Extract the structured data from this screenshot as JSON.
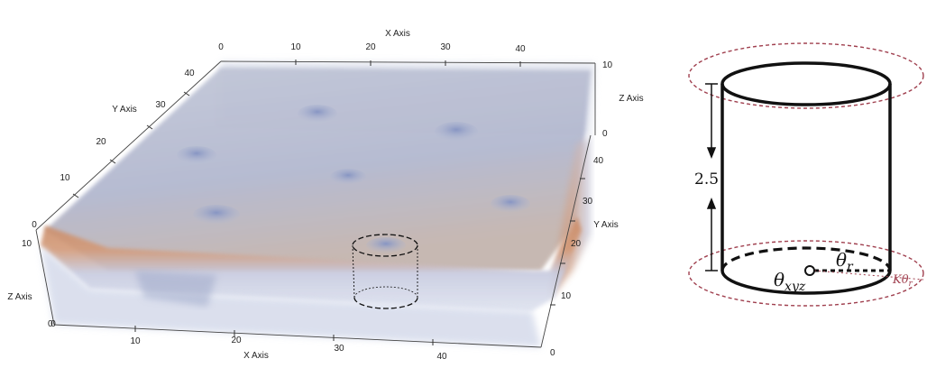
{
  "left_panel": {
    "axis_titles": {
      "x_top": "X Axis",
      "x_bottom": "X Axis",
      "y_left": "Y Axis",
      "y_right": "Y Axis",
      "z_right": "Z Axis",
      "z_left": "Z Axis"
    },
    "ticks": {
      "x_top": [
        "0",
        "10",
        "20",
        "30",
        "40"
      ],
      "x_bottom": [
        "0",
        "10",
        "20",
        "30",
        "40"
      ],
      "y_left": [
        "0",
        "10",
        "20",
        "30",
        "40"
      ],
      "y_right": [
        "0",
        "10",
        "20",
        "30",
        "40"
      ],
      "z_right": [
        "10",
        "0"
      ],
      "z_left": [
        "10",
        "0"
      ]
    },
    "colors": {
      "slab_top": "#a9b3cf",
      "slab_orange": "#c97d55",
      "slab_bottom": "#c4cde3",
      "dimple": "#8f9ec8"
    }
  },
  "right_panel": {
    "height_label": "2.5",
    "theta_xyz": "θ",
    "theta_xyz_sub": "xyz",
    "theta_r": "θ",
    "theta_r_sub": "r",
    "k_theta_r": "Kθ",
    "k_theta_r_sub": "r",
    "colors": {
      "cylinder": "#111111",
      "outer_dashed": "#a0404f"
    }
  }
}
